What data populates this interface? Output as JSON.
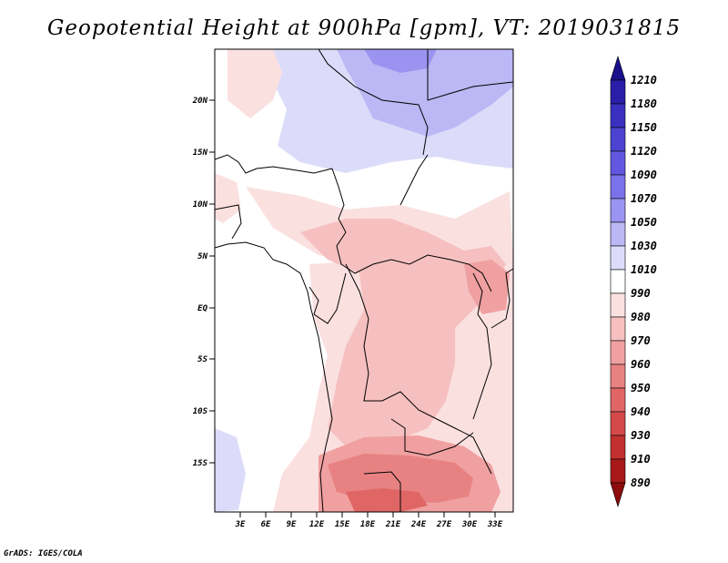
{
  "title": "Geopotential Height at 900hPa [gpm], VT: 2019031815",
  "credit": "GrADS: IGES/COLA",
  "map": {
    "lat_labels": [
      "20N",
      "15N",
      "10N",
      "5N",
      "EQ",
      "5S",
      "10S",
      "15S"
    ],
    "lon_labels": [
      "3E",
      "6E",
      "9E",
      "12E",
      "15E",
      "18E",
      "21E",
      "24E",
      "27E",
      "30E",
      "33E"
    ]
  },
  "colorbar": {
    "levels": [
      "1210",
      "1180",
      "1150",
      "1120",
      "1090",
      "1070",
      "1050",
      "1030",
      "1010",
      "990",
      "980",
      "970",
      "960",
      "950",
      "940",
      "930",
      "910",
      "890"
    ],
    "colors": [
      "#1a0f8a",
      "#2a1ea8",
      "#3a30c0",
      "#4c44d0",
      "#6258e0",
      "#7a72ea",
      "#9a94f0",
      "#bbb8f5",
      "#dcdcfa",
      "#ffffff",
      "#fbe0e0",
      "#f6c0c0",
      "#f0a0a0",
      "#e88282",
      "#e06666",
      "#d44a4a",
      "#c23030",
      "#a81a1a",
      "#8c0c0c"
    ]
  }
}
